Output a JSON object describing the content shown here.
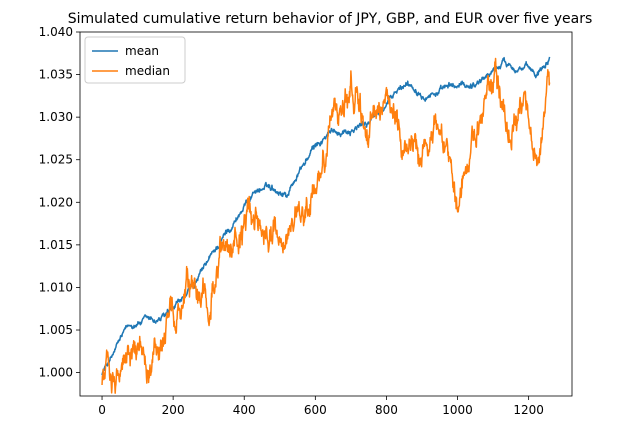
{
  "chart_data": {
    "type": "line",
    "title": "Simulated cumulative return behavior of JPY, GBP, and EUR over five years",
    "xlabel": "",
    "ylabel": "",
    "xlim": [
      -62,
      1322
    ],
    "ylim": [
      0.99725,
      1.04
    ],
    "x_ticks": [
      0,
      200,
      400,
      600,
      800,
      1000,
      1200
    ],
    "y_ticks": [
      1.0,
      1.005,
      1.01,
      1.015,
      1.02,
      1.025,
      1.03,
      1.035,
      1.04
    ],
    "y_tick_labels": [
      "1.000",
      "1.005",
      "1.010",
      "1.015",
      "1.020",
      "1.025",
      "1.030",
      "1.035",
      "1.040"
    ],
    "grid": false,
    "legend_position": "top-left",
    "n_points": 1260,
    "series": [
      {
        "name": "mean",
        "color": "#1f77b4",
        "anchors": [
          [
            0,
            1.0
          ],
          [
            30,
            1.002
          ],
          [
            60,
            1.0045
          ],
          [
            100,
            1.006
          ],
          [
            150,
            1.006
          ],
          [
            200,
            1.007
          ],
          [
            250,
            1.0095
          ],
          [
            300,
            1.013
          ],
          [
            350,
            1.0165
          ],
          [
            400,
            1.0195
          ],
          [
            430,
            1.0215
          ],
          [
            480,
            1.0218
          ],
          [
            520,
            1.021
          ],
          [
            560,
            1.024
          ],
          [
            600,
            1.0265
          ],
          [
            640,
            1.028
          ],
          [
            680,
            1.0285
          ],
          [
            730,
            1.029
          ],
          [
            780,
            1.0305
          ],
          [
            820,
            1.0325
          ],
          [
            860,
            1.034
          ],
          [
            900,
            1.0332
          ],
          [
            950,
            1.033
          ],
          [
            1000,
            1.0335
          ],
          [
            1050,
            1.034
          ],
          [
            1100,
            1.0355
          ],
          [
            1130,
            1.0365
          ],
          [
            1180,
            1.036
          ],
          [
            1220,
            1.035
          ],
          [
            1245,
            1.0365
          ],
          [
            1260,
            1.0375
          ]
        ],
        "noise": 0.0004
      },
      {
        "name": "median",
        "color": "#ff7f0e",
        "anchors": [
          [
            0,
            0.9995
          ],
          [
            20,
            1.0
          ],
          [
            60,
            1.0015
          ],
          [
            120,
            1.003
          ],
          [
            160,
            1.002
          ],
          [
            200,
            1.005
          ],
          [
            240,
            1.008
          ],
          [
            280,
            1.007
          ],
          [
            320,
            1.012
          ],
          [
            360,
            1.016
          ],
          [
            400,
            1.017
          ],
          [
            440,
            1.0185
          ],
          [
            480,
            1.017
          ],
          [
            520,
            1.016
          ],
          [
            560,
            1.017
          ],
          [
            600,
            1.0215
          ],
          [
            630,
            1.026
          ],
          [
            660,
            1.032
          ],
          [
            700,
            1.033
          ],
          [
            740,
            1.0285
          ],
          [
            780,
            1.03
          ],
          [
            820,
            1.0315
          ],
          [
            860,
            1.0275
          ],
          [
            900,
            1.027
          ],
          [
            940,
            1.029
          ],
          [
            980,
            1.027
          ],
          [
            1000,
            1.022
          ],
          [
            1030,
            1.0245
          ],
          [
            1060,
            1.03
          ],
          [
            1090,
            1.0335
          ],
          [
            1110,
            1.035
          ],
          [
            1130,
            1.031
          ],
          [
            1160,
            1.0285
          ],
          [
            1190,
            1.029
          ],
          [
            1220,
            1.0275
          ],
          [
            1240,
            1.029
          ],
          [
            1260,
            1.0335
          ]
        ],
        "noise": 0.0018
      }
    ]
  }
}
